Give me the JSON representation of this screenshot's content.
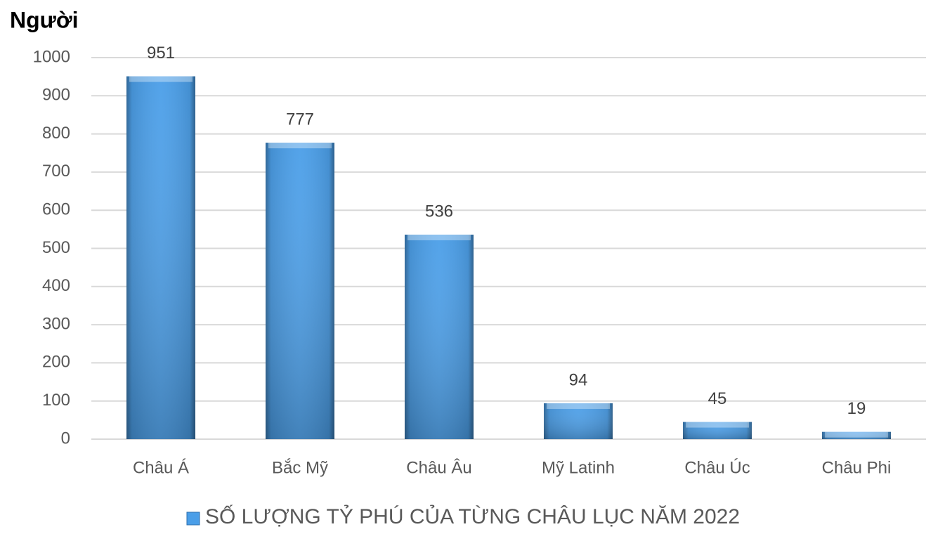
{
  "chart_data": {
    "type": "bar",
    "y_label": "Người",
    "categories": [
      "Châu Á",
      "Bắc Mỹ",
      "Châu Âu",
      "Mỹ Latinh",
      "Châu Úc",
      "Châu Phi"
    ],
    "series": [
      {
        "name": "SỐ LƯỢNG TỶ PHÚ CỦA TỪNG CHÂU LỤC NĂM 2022",
        "color": "#4a9ee8",
        "values": [
          951,
          777,
          536,
          94,
          45,
          19
        ]
      }
    ],
    "ylim": [
      0,
      1000
    ],
    "yticks": [
      0,
      100,
      200,
      300,
      400,
      500,
      600,
      700,
      800,
      900,
      1000
    ],
    "grid": true,
    "legend": "bottom"
  }
}
